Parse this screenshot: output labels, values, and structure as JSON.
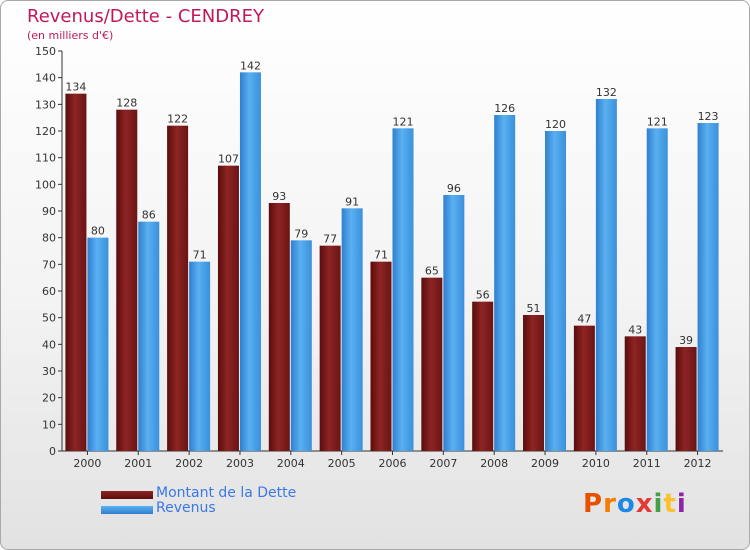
{
  "title": "Revenus/Dette - CENDREY",
  "subtitle": "(en milliers d'€)",
  "logo": "Proxiti",
  "colors": {
    "title": "#c2185b",
    "dette": "#7a1a1a",
    "revenus": "#4aa3e8",
    "legend_text": "#3b78e7"
  },
  "chart_data": {
    "type": "bar",
    "categories": [
      "2000",
      "2001",
      "2002",
      "2003",
      "2004",
      "2005",
      "2006",
      "2007",
      "2008",
      "2009",
      "2010",
      "2011",
      "2012"
    ],
    "series": [
      {
        "name": "Montant de la Dette",
        "values": [
          134,
          128,
          122,
          107,
          93,
          77,
          71,
          65,
          56,
          51,
          47,
          43,
          39
        ]
      },
      {
        "name": "Revenus",
        "values": [
          80,
          86,
          71,
          142,
          79,
          91,
          121,
          96,
          126,
          120,
          132,
          121,
          123
        ]
      }
    ],
    "ylim": [
      0,
      150
    ],
    "yticks": [
      0,
      10,
      20,
      30,
      40,
      50,
      60,
      70,
      80,
      90,
      100,
      110,
      120,
      130,
      140,
      150
    ],
    "grid": false,
    "legend": "bottom-left"
  }
}
